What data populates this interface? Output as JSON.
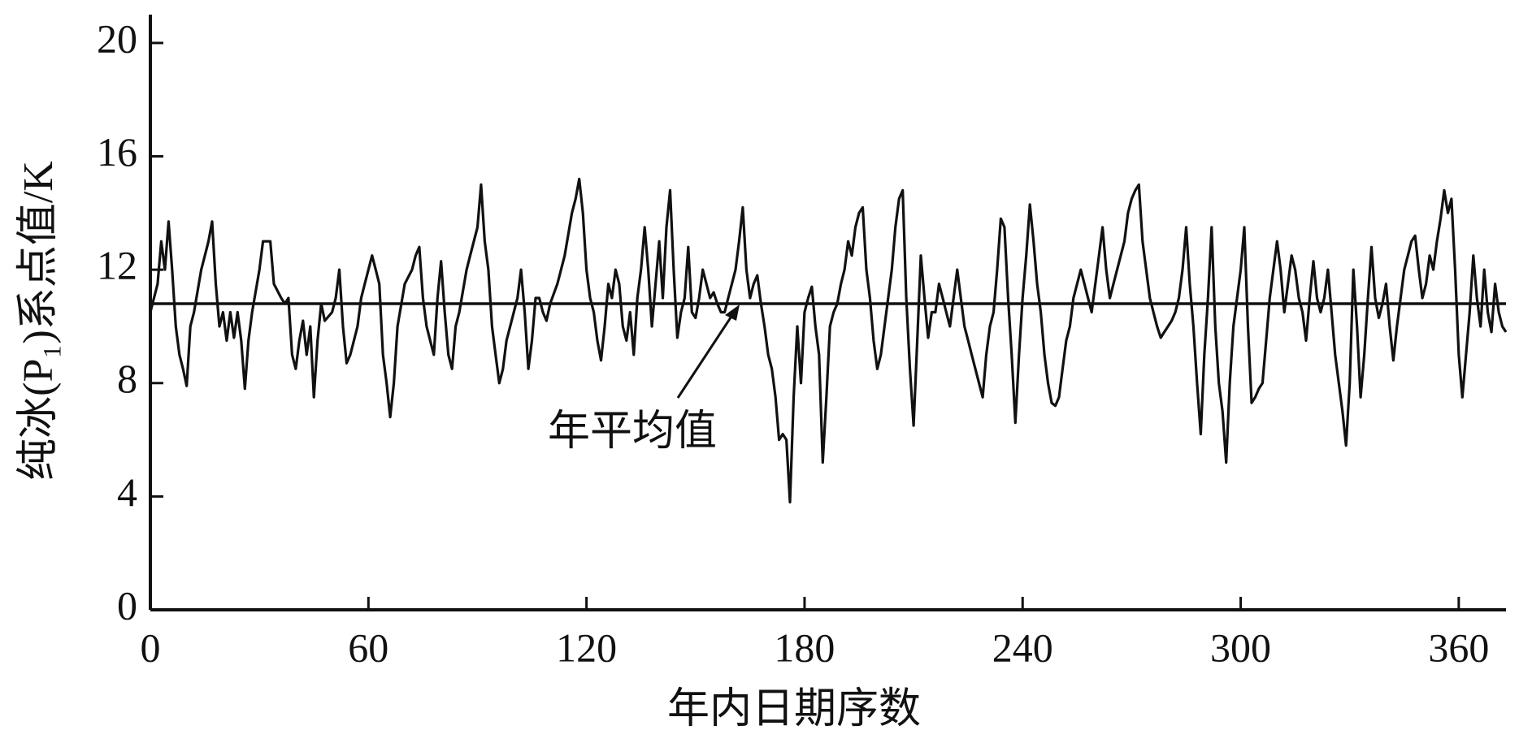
{
  "chart_data": {
    "type": "line",
    "y_label": "纯冰(P₁)系点值/K",
    "x_label": "年内日期序数",
    "annotation": "年平均值",
    "mean_value": 10.8,
    "color": "#111111",
    "xlim": [
      0,
      373
    ],
    "xticks": [
      0,
      60,
      120,
      180,
      240,
      300,
      360
    ],
    "ylim": [
      0,
      21
    ],
    "yticks": [
      0,
      4,
      8,
      12,
      16,
      20
    ],
    "x": [
      0,
      2,
      3,
      4,
      5,
      6,
      7,
      8,
      9,
      10,
      11,
      12,
      14,
      15,
      16,
      17,
      18,
      19,
      20,
      21,
      22,
      23,
      24,
      25,
      26,
      27,
      28,
      30,
      31,
      33,
      34,
      36,
      37,
      38,
      39,
      40,
      41,
      42,
      43,
      44,
      45,
      46,
      47,
      48,
      50,
      51,
      52,
      53,
      54,
      55,
      57,
      58,
      59,
      61,
      62,
      63,
      64,
      65,
      66,
      67,
      68,
      70,
      72,
      73,
      74,
      75,
      76,
      77,
      78,
      79,
      80,
      81,
      82,
      83,
      84,
      85,
      87,
      88,
      90,
      91,
      92,
      93,
      94,
      95,
      96,
      97,
      98,
      99,
      100,
      101,
      102,
      103,
      104,
      105,
      106,
      107,
      108,
      109,
      110,
      112,
      113,
      114,
      116,
      117,
      118,
      119,
      120,
      121,
      122,
      123,
      124,
      125,
      126,
      127,
      128,
      129,
      130,
      131,
      132,
      133,
      134,
      135,
      136,
      137,
      138,
      139,
      140,
      141,
      142,
      143,
      144,
      145,
      146,
      147,
      148,
      149,
      150,
      151,
      152,
      153,
      154,
      155,
      156,
      157,
      158,
      159,
      160,
      161,
      162,
      163,
      164,
      165,
      166,
      167,
      168,
      169,
      170,
      171,
      172,
      173,
      174,
      175,
      176,
      177,
      178,
      179,
      180,
      181,
      182,
      183,
      184,
      185,
      186,
      187,
      188,
      189,
      190,
      191,
      192,
      193,
      194,
      195,
      196,
      197,
      198,
      199,
      200,
      201,
      202,
      203,
      204,
      205,
      206,
      207,
      208,
      209,
      210,
      211,
      212,
      213,
      214,
      215,
      216,
      217,
      218,
      219,
      220,
      221,
      222,
      223,
      224,
      225,
      226,
      227,
      228,
      229,
      230,
      231,
      232,
      233,
      234,
      235,
      236,
      237,
      238,
      239,
      240,
      241,
      242,
      243,
      244,
      245,
      246,
      247,
      248,
      249,
      250,
      251,
      252,
      253,
      254,
      255,
      256,
      257,
      258,
      259,
      260,
      261,
      262,
      263,
      264,
      265,
      266,
      267,
      268,
      269,
      270,
      271,
      272,
      273,
      274,
      275,
      276,
      277,
      278,
      279,
      280,
      281,
      282,
      283,
      284,
      285,
      286,
      287,
      288,
      289,
      290,
      291,
      292,
      293,
      294,
      295,
      296,
      297,
      298,
      299,
      300,
      301,
      302,
      303,
      304,
      305,
      306,
      307,
      308,
      309,
      310,
      311,
      312,
      313,
      314,
      315,
      316,
      317,
      318,
      319,
      320,
      321,
      322,
      323,
      324,
      325,
      326,
      327,
      328,
      329,
      330,
      331,
      332,
      333,
      334,
      335,
      336,
      337,
      338,
      339,
      340,
      341,
      342,
      343,
      344,
      345,
      346,
      347,
      348,
      349,
      350,
      351,
      352,
      353,
      354,
      355,
      356,
      357,
      358,
      359,
      360,
      361,
      362,
      363,
      364,
      365,
      366,
      367,
      368,
      369,
      370,
      371,
      372,
      373
    ],
    "values": [
      10.5,
      11.5,
      13,
      12,
      13.7,
      12,
      10,
      9,
      8.5,
      7.9,
      10,
      10.5,
      12,
      12.5,
      13,
      13.7,
      11.5,
      10,
      10.5,
      9.5,
      10.5,
      9.6,
      10.5,
      9.5,
      7.8,
      9.5,
      10.5,
      12,
      13,
      13,
      11.5,
      11,
      10.8,
      11,
      9,
      8.5,
      9.5,
      10.2,
      9,
      10,
      7.5,
      9.5,
      10.8,
      10.2,
      10.5,
      11,
      12,
      10,
      8.7,
      9,
      10,
      11,
      11.5,
      12.5,
      12,
      11.5,
      9,
      8,
      6.8,
      8,
      10,
      11.5,
      12,
      12.5,
      12.8,
      11,
      10,
      9.5,
      9,
      11,
      12.3,
      10.5,
      9,
      8.5,
      10,
      10.5,
      12,
      12.5,
      13.5,
      15,
      13,
      12,
      10,
      9,
      8,
      8.5,
      9.5,
      10,
      10.5,
      11,
      12,
      10.5,
      8.5,
      9.5,
      11,
      11,
      10.5,
      10.2,
      10.8,
      11.5,
      12,
      12.5,
      14,
      14.5,
      15.2,
      14,
      12,
      11,
      10.5,
      9.5,
      8.8,
      10,
      11.5,
      11,
      12,
      11.5,
      10,
      9.5,
      10.5,
      9,
      11,
      12,
      13.5,
      12,
      10,
      11.5,
      13,
      11,
      13.5,
      14.8,
      12,
      9.6,
      10.5,
      11,
      12.8,
      10.5,
      10.3,
      11,
      12,
      11.5,
      11,
      11.2,
      10.8,
      10.5,
      10.5,
      11,
      11.5,
      12,
      13,
      14.2,
      12,
      11,
      11.5,
      11.8,
      10.8,
      10,
      9,
      8.5,
      7.5,
      6,
      6.2,
      6,
      3.8,
      7.5,
      10,
      8,
      10.5,
      11,
      11.4,
      10,
      9,
      5.2,
      7.5,
      10,
      10.5,
      10.8,
      11.5,
      12,
      13,
      12.5,
      13.5,
      14,
      14.2,
      12,
      11,
      9.5,
      8.5,
      9,
      10,
      11,
      12,
      13.5,
      14.5,
      14.8,
      11,
      8.5,
      6.5,
      9.5,
      12.5,
      11,
      9.6,
      10.5,
      10.5,
      11.5,
      11,
      10.5,
      10,
      11,
      12,
      11,
      10,
      9.5,
      9,
      8.5,
      8,
      7.5,
      9,
      10,
      10.5,
      12,
      13.8,
      13.5,
      11,
      9,
      6.6,
      9,
      11,
      12.5,
      14.3,
      13,
      11.5,
      10.5,
      9,
      8,
      7.3,
      7.2,
      7.5,
      8.5,
      9.5,
      10,
      11,
      11.5,
      12,
      11.5,
      11,
      10.5,
      11.5,
      12.5,
      13.5,
      12,
      11,
      11.5,
      12,
      12.5,
      13,
      14,
      14.5,
      14.8,
      15,
      13,
      12,
      11,
      10.5,
      10,
      9.6,
      9.8,
      10,
      10.2,
      10.5,
      11,
      12,
      13.5,
      11.5,
      10,
      8,
      6.2,
      9,
      11,
      13.5,
      10,
      8,
      7,
      5.2,
      8,
      10,
      11,
      12,
      13.5,
      10,
      7.3,
      7.5,
      7.8,
      8,
      9.5,
      11,
      12,
      13,
      12,
      10.5,
      11.5,
      12.5,
      12,
      11,
      10.5,
      9.5,
      11,
      12.3,
      11,
      10.5,
      11,
      12,
      10.5,
      9,
      8,
      7,
      5.8,
      8,
      12,
      10,
      7.5,
      9,
      11,
      12.8,
      11,
      10.3,
      10.8,
      11.5,
      10,
      8.8,
      10,
      11,
      12,
      12.5,
      13,
      13.2,
      12,
      11,
      11.5,
      12.5,
      12,
      13,
      13.8,
      14.8,
      14,
      14.5,
      12,
      9,
      7.5,
      9,
      10.5,
      12.5,
      11,
      10,
      12,
      10.5,
      9.8,
      11.5,
      10.5,
      10,
      9.8
    ]
  }
}
